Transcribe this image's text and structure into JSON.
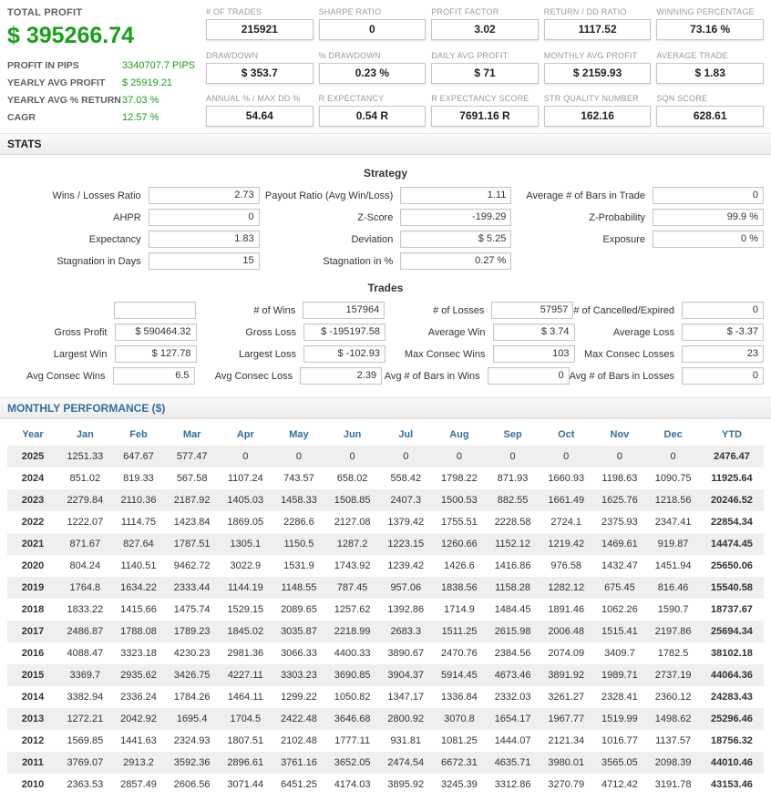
{
  "colors": {
    "profit_green": "#18a018",
    "header_blue": "#336e9e",
    "box_border": "#c6c6c6",
    "row_stripe": "#efefef"
  },
  "header": {
    "total_profit": {
      "label": "TOTAL PROFIT",
      "value": "$ 395266.74"
    },
    "summary_rows": [
      {
        "label": "PROFIT IN PIPS",
        "value": "3340707.7 PIPS"
      },
      {
        "label": "YEARLY AVG PROFIT",
        "value": "$ 25919.21"
      },
      {
        "label": "YEARLY AVG % RETURN",
        "value": "37.03 %"
      },
      {
        "label": "CAGR",
        "value": "12.57 %"
      }
    ],
    "stat_boxes": [
      {
        "label": "# OF TRADES",
        "value": "215921"
      },
      {
        "label": "SHARPE RATIO",
        "value": "0"
      },
      {
        "label": "PROFIT FACTOR",
        "value": "3.02"
      },
      {
        "label": "RETURN / DD RATIO",
        "value": "1117.52"
      },
      {
        "label": "WINNING PERCENTAGE",
        "value": "73.16 %"
      },
      {
        "label": "DRAWDOWN",
        "value": "$ 353.7"
      },
      {
        "label": "% DRAWDOWN",
        "value": "0.23 %"
      },
      {
        "label": "DAILY AVG PROFIT",
        "value": "$ 71"
      },
      {
        "label": "MONTHLY AVG PROFIT",
        "value": "$ 2159.93"
      },
      {
        "label": "AVERAGE TRADE",
        "value": "$ 1.83"
      },
      {
        "label": "ANNUAL % / MAX DD %",
        "value": "54.64"
      },
      {
        "label": "R EXPECTANCY",
        "value": "0.54 R"
      },
      {
        "label": "R EXPECTANCY SCORE",
        "value": "7691.16 R"
      },
      {
        "label": "STR QUALITY NUMBER",
        "value": "162.16"
      },
      {
        "label": "SQN SCORE",
        "value": "628.61"
      }
    ]
  },
  "stats": {
    "title": "STATS",
    "strategy": {
      "title": "Strategy",
      "rows": [
        [
          {
            "label": "Wins / Losses Ratio",
            "value": "2.73"
          },
          {
            "label": "Payout Ratio (Avg Win/Loss)",
            "value": "1.11"
          },
          {
            "label": "Average # of Bars in Trade",
            "value": "0"
          }
        ],
        [
          {
            "label": "AHPR",
            "value": "0"
          },
          {
            "label": "Z-Score",
            "value": "-199.29"
          },
          {
            "label": "Z-Probability",
            "value": "99.9 %"
          }
        ],
        [
          {
            "label": "Expectancy",
            "value": "1.83"
          },
          {
            "label": "Deviation",
            "value": "$ 5.25"
          },
          {
            "label": "Exposure",
            "value": "0 %"
          }
        ],
        [
          {
            "label": "Stagnation in Days",
            "value": "15"
          },
          {
            "label": "Stagnation in %",
            "value": "0.27 %"
          },
          null
        ]
      ]
    },
    "trades": {
      "title": "Trades",
      "rows": [
        [
          {
            "label": "",
            "value": ""
          },
          {
            "label": "# of Wins",
            "value": "157964"
          },
          {
            "label": "# of Losses",
            "value": "57957"
          },
          {
            "label": "# of Cancelled/Expired",
            "value": "0"
          }
        ],
        [
          {
            "label": "Gross Profit",
            "value": "$ 590464.32"
          },
          {
            "label": "Gross Loss",
            "value": "$ -195197.58"
          },
          {
            "label": "Average Win",
            "value": "$ 3.74"
          },
          {
            "label": "Average Loss",
            "value": "$ -3.37"
          }
        ],
        [
          {
            "label": "Largest Win",
            "value": "$ 127.78"
          },
          {
            "label": "Largest Loss",
            "value": "$ -102.93"
          },
          {
            "label": "Max Consec Wins",
            "value": "103"
          },
          {
            "label": "Max Consec Losses",
            "value": "23"
          }
        ],
        [
          {
            "label": "Avg Consec Wins",
            "value": "6.5"
          },
          {
            "label": "Avg Consec Loss",
            "value": "2.39"
          },
          {
            "label": "Avg # of Bars in Wins",
            "value": "0"
          },
          {
            "label": "Avg # of Bars in Losses",
            "value": "0"
          }
        ]
      ]
    }
  },
  "monthly": {
    "title": "MONTHLY PERFORMANCE ($)",
    "columns": [
      "Year",
      "Jan",
      "Feb",
      "Mar",
      "Apr",
      "May",
      "Jun",
      "Jul",
      "Aug",
      "Sep",
      "Oct",
      "Nov",
      "Dec",
      "YTD"
    ],
    "rows": [
      {
        "year": "2025",
        "values": [
          "1251.33",
          "647.67",
          "577.47",
          "0",
          "0",
          "0",
          "0",
          "0",
          "0",
          "0",
          "0",
          "0"
        ],
        "ytd": "2476.47"
      },
      {
        "year": "2024",
        "values": [
          "851.02",
          "819.33",
          "567.58",
          "1107.24",
          "743.57",
          "658.02",
          "558.42",
          "1798.22",
          "871.93",
          "1660.93",
          "1198.63",
          "1090.75"
        ],
        "ytd": "11925.64"
      },
      {
        "year": "2023",
        "values": [
          "2279.84",
          "2110.36",
          "2187.92",
          "1405.03",
          "1458.33",
          "1508.85",
          "2407.3",
          "1500.53",
          "882.55",
          "1661.49",
          "1625.76",
          "1218.56"
        ],
        "ytd": "20246.52"
      },
      {
        "year": "2022",
        "values": [
          "1222.07",
          "1114.75",
          "1423.84",
          "1869.05",
          "2286.6",
          "2127.08",
          "1379.42",
          "1755.51",
          "2228.58",
          "2724.1",
          "2375.93",
          "2347.41"
        ],
        "ytd": "22854.34"
      },
      {
        "year": "2021",
        "values": [
          "871.67",
          "827.64",
          "1787.51",
          "1305.1",
          "1150.5",
          "1287.2",
          "1223.15",
          "1260.66",
          "1152.12",
          "1219.42",
          "1469.61",
          "919.87"
        ],
        "ytd": "14474.45"
      },
      {
        "year": "2020",
        "values": [
          "804.24",
          "1140.51",
          "9462.72",
          "3022.9",
          "1531.9",
          "1743.92",
          "1239.42",
          "1426.6",
          "1416.86",
          "976.58",
          "1432.47",
          "1451.94"
        ],
        "ytd": "25650.06"
      },
      {
        "year": "2019",
        "values": [
          "1764.8",
          "1634.22",
          "2333.44",
          "1144.19",
          "1148.55",
          "787.45",
          "957.06",
          "1838.56",
          "1158.28",
          "1282.12",
          "675.45",
          "816.46"
        ],
        "ytd": "15540.58"
      },
      {
        "year": "2018",
        "values": [
          "1833.22",
          "1415.66",
          "1475.74",
          "1529.15",
          "2089.65",
          "1257.62",
          "1392.86",
          "1714.9",
          "1484.45",
          "1891.46",
          "1062.26",
          "1590.7"
        ],
        "ytd": "18737.67"
      },
      {
        "year": "2017",
        "values": [
          "2486.87",
          "1788.08",
          "1789.23",
          "1845.02",
          "3035.87",
          "2218.99",
          "2683.3",
          "1511.25",
          "2615.98",
          "2006.48",
          "1515.41",
          "2197.86"
        ],
        "ytd": "25694.34"
      },
      {
        "year": "2016",
        "values": [
          "4088.47",
          "3323.18",
          "4230.23",
          "2981.36",
          "3066.33",
          "4400.33",
          "3890.67",
          "2470.76",
          "2384.56",
          "2074.09",
          "3409.7",
          "1782.5"
        ],
        "ytd": "38102.18"
      },
      {
        "year": "2015",
        "values": [
          "3369.7",
          "2935.62",
          "3426.75",
          "4227.11",
          "3303.23",
          "3690.85",
          "3904.37",
          "5914.45",
          "4673.46",
          "3891.92",
          "1989.71",
          "2737.19"
        ],
        "ytd": "44064.36"
      },
      {
        "year": "2014",
        "values": [
          "3382.94",
          "2336.24",
          "1784.26",
          "1464.11",
          "1299.22",
          "1050.82",
          "1347.17",
          "1336.84",
          "2332.03",
          "3261.27",
          "2328.41",
          "2360.12"
        ],
        "ytd": "24283.43"
      },
      {
        "year": "2013",
        "values": [
          "1272.21",
          "2042.92",
          "1695.4",
          "1704.5",
          "2422.48",
          "3646.68",
          "2800.92",
          "3070.8",
          "1654.17",
          "1967.77",
          "1519.99",
          "1498.62"
        ],
        "ytd": "25296.46"
      },
      {
        "year": "2012",
        "values": [
          "1569.85",
          "1441.63",
          "2324.93",
          "1807.51",
          "2102.48",
          "1777.11",
          "931.81",
          "1081.25",
          "1444.07",
          "2121.34",
          "1016.77",
          "1137.57"
        ],
        "ytd": "18756.32"
      },
      {
        "year": "2011",
        "values": [
          "3769.07",
          "2913.2",
          "3592.36",
          "2896.61",
          "3761.16",
          "3652.05",
          "2474.54",
          "6672.31",
          "4635.71",
          "3980.01",
          "3565.05",
          "2098.39"
        ],
        "ytd": "44010.46"
      },
      {
        "year": "2010",
        "values": [
          "2363.53",
          "2857.49",
          "2606.56",
          "3071.44",
          "6451.25",
          "4174.03",
          "3895.92",
          "3245.39",
          "3312.86",
          "3270.79",
          "4712.42",
          "3191.78"
        ],
        "ytd": "43153.46"
      }
    ]
  }
}
